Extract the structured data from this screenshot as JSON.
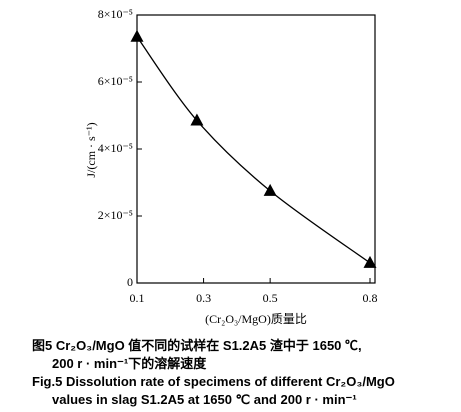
{
  "chart_data": {
    "type": "line",
    "x_label": "(Cr₂O₃/MgO)质量比",
    "y_label": "J/(cm · s⁻¹)",
    "x": [
      0.1,
      0.28,
      0.5,
      0.8
    ],
    "series": [
      {
        "color": "#000000",
        "values": [
          7.35e-05,
          4.85e-05,
          2.75e-05,
          6e-06
        ]
      }
    ],
    "xlim": [
      0.1,
      0.8
    ],
    "xticks": [
      0.1,
      0.3,
      0.5,
      0.8
    ],
    "ylim": [
      0,
      8e-05
    ],
    "yticks": [
      0,
      {
        "value": 2e-05,
        "label": "2×10⁻⁵"
      },
      {
        "value": 4e-05,
        "label": "4×10⁻⁵"
      },
      {
        "value": 6e-05,
        "label": "6×10⁻⁵"
      },
      {
        "value": 8e-05,
        "label": "8×10⁻⁵"
      }
    ],
    "caption": [
      "图5  Cr₂O₃/MgO 值不同的试样在 S1.2A5 渣中于 1650 ℃,",
      "200 r · min⁻¹下的溶解速度",
      "Fig.5 Dissolution rate of specimens of different Cr₂O₃/MgO",
      "values in slag S1.2A5 at 1650 ℃ and 200 r · min⁻¹"
    ]
  }
}
